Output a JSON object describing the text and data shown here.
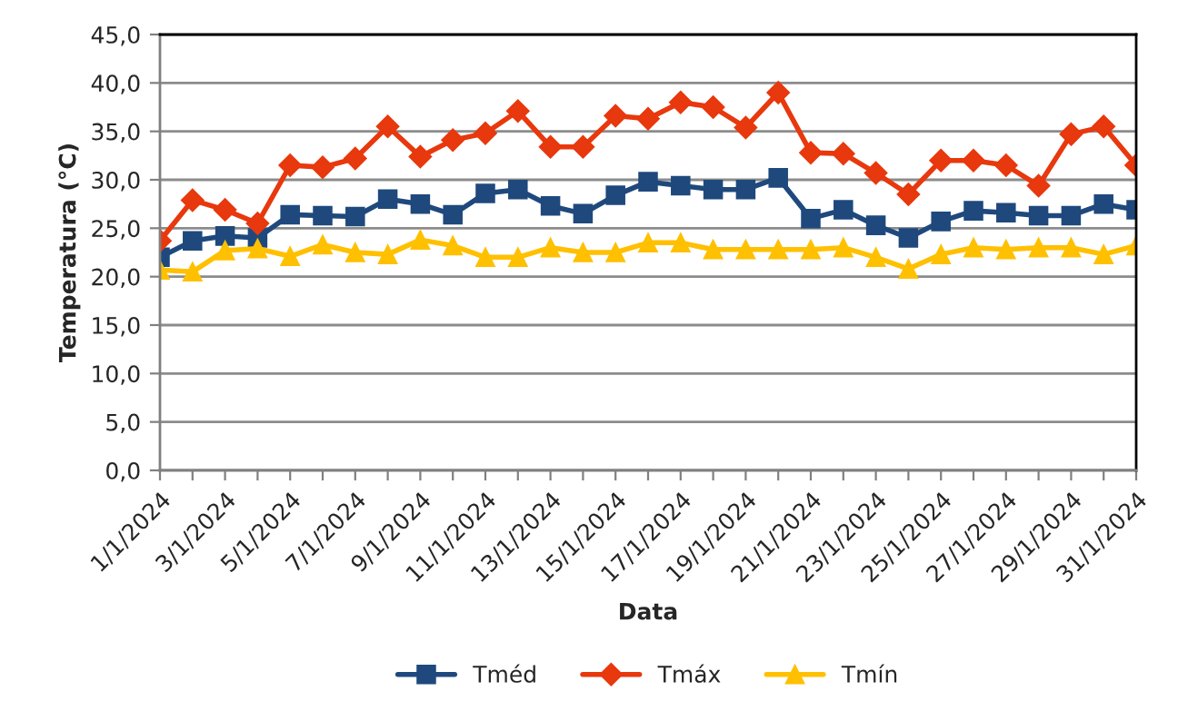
{
  "chart_data": {
    "type": "line",
    "xlabel": "Data",
    "ylabel": "Temperatura (°C)",
    "categories": [
      "1/1/2024",
      null,
      "3/1/2024",
      null,
      "5/1/2024",
      null,
      "7/1/2024",
      null,
      "9/1/2024",
      null,
      "11/1/2024",
      null,
      "13/1/2024",
      null,
      "15/1/2024",
      null,
      "17/1/2024",
      null,
      "19/1/2024",
      null,
      "21/1/2024",
      null,
      "23/1/2024",
      null,
      "25/1/2024",
      null,
      "27/1/2024",
      null,
      "29/1/2024",
      null,
      "31/1/2024"
    ],
    "series": [
      {
        "name": "Tméd",
        "color": "#1f497d",
        "marker": "square",
        "values": [
          22.0,
          23.7,
          24.2,
          24.0,
          26.4,
          26.3,
          26.2,
          28.0,
          27.5,
          26.4,
          28.6,
          29.0,
          27.3,
          26.5,
          28.4,
          29.8,
          29.4,
          29.0,
          29.0,
          30.2,
          26.0,
          26.9,
          25.3,
          24.0,
          25.7,
          26.8,
          26.6,
          26.3,
          26.3,
          27.5,
          26.9
        ]
      },
      {
        "name": "Tmáx",
        "color": "#e8380d",
        "marker": "diamond",
        "values": [
          23.7,
          27.9,
          26.9,
          25.5,
          31.5,
          31.3,
          32.2,
          35.5,
          32.4,
          34.1,
          34.8,
          37.1,
          33.4,
          33.4,
          36.6,
          36.3,
          38.0,
          37.5,
          35.4,
          39.0,
          32.8,
          32.7,
          30.7,
          28.5,
          32.0,
          32.0,
          31.5,
          29.4,
          34.7,
          35.5,
          31.5
        ]
      },
      {
        "name": "Tmín",
        "color": "#ffc000",
        "marker": "triangle",
        "values": [
          20.7,
          20.5,
          22.7,
          22.9,
          22.1,
          23.3,
          22.5,
          22.3,
          23.8,
          23.2,
          22.0,
          22.0,
          23.0,
          22.5,
          22.5,
          23.5,
          23.5,
          22.8,
          22.8,
          22.8,
          22.8,
          23.0,
          22.0,
          20.8,
          22.3,
          23.0,
          22.8,
          23.0,
          23.0,
          22.3,
          23.2
        ]
      }
    ],
    "ylim": [
      0,
      45
    ],
    "yticks": [
      {
        "value": 0,
        "label": "0,0"
      },
      {
        "value": 5,
        "label": "5,0"
      },
      {
        "value": 10,
        "label": "10,0"
      },
      {
        "value": 15,
        "label": "15,0"
      },
      {
        "value": 20,
        "label": "20,0"
      },
      {
        "value": 25,
        "label": "25,0"
      },
      {
        "value": 30,
        "label": "30,0"
      },
      {
        "value": 35,
        "label": "35,0"
      },
      {
        "value": 40,
        "label": "40,0"
      },
      {
        "value": 45,
        "label": "45,0"
      }
    ],
    "grid": "y",
    "legend": "bottom",
    "line_style": "solid"
  }
}
